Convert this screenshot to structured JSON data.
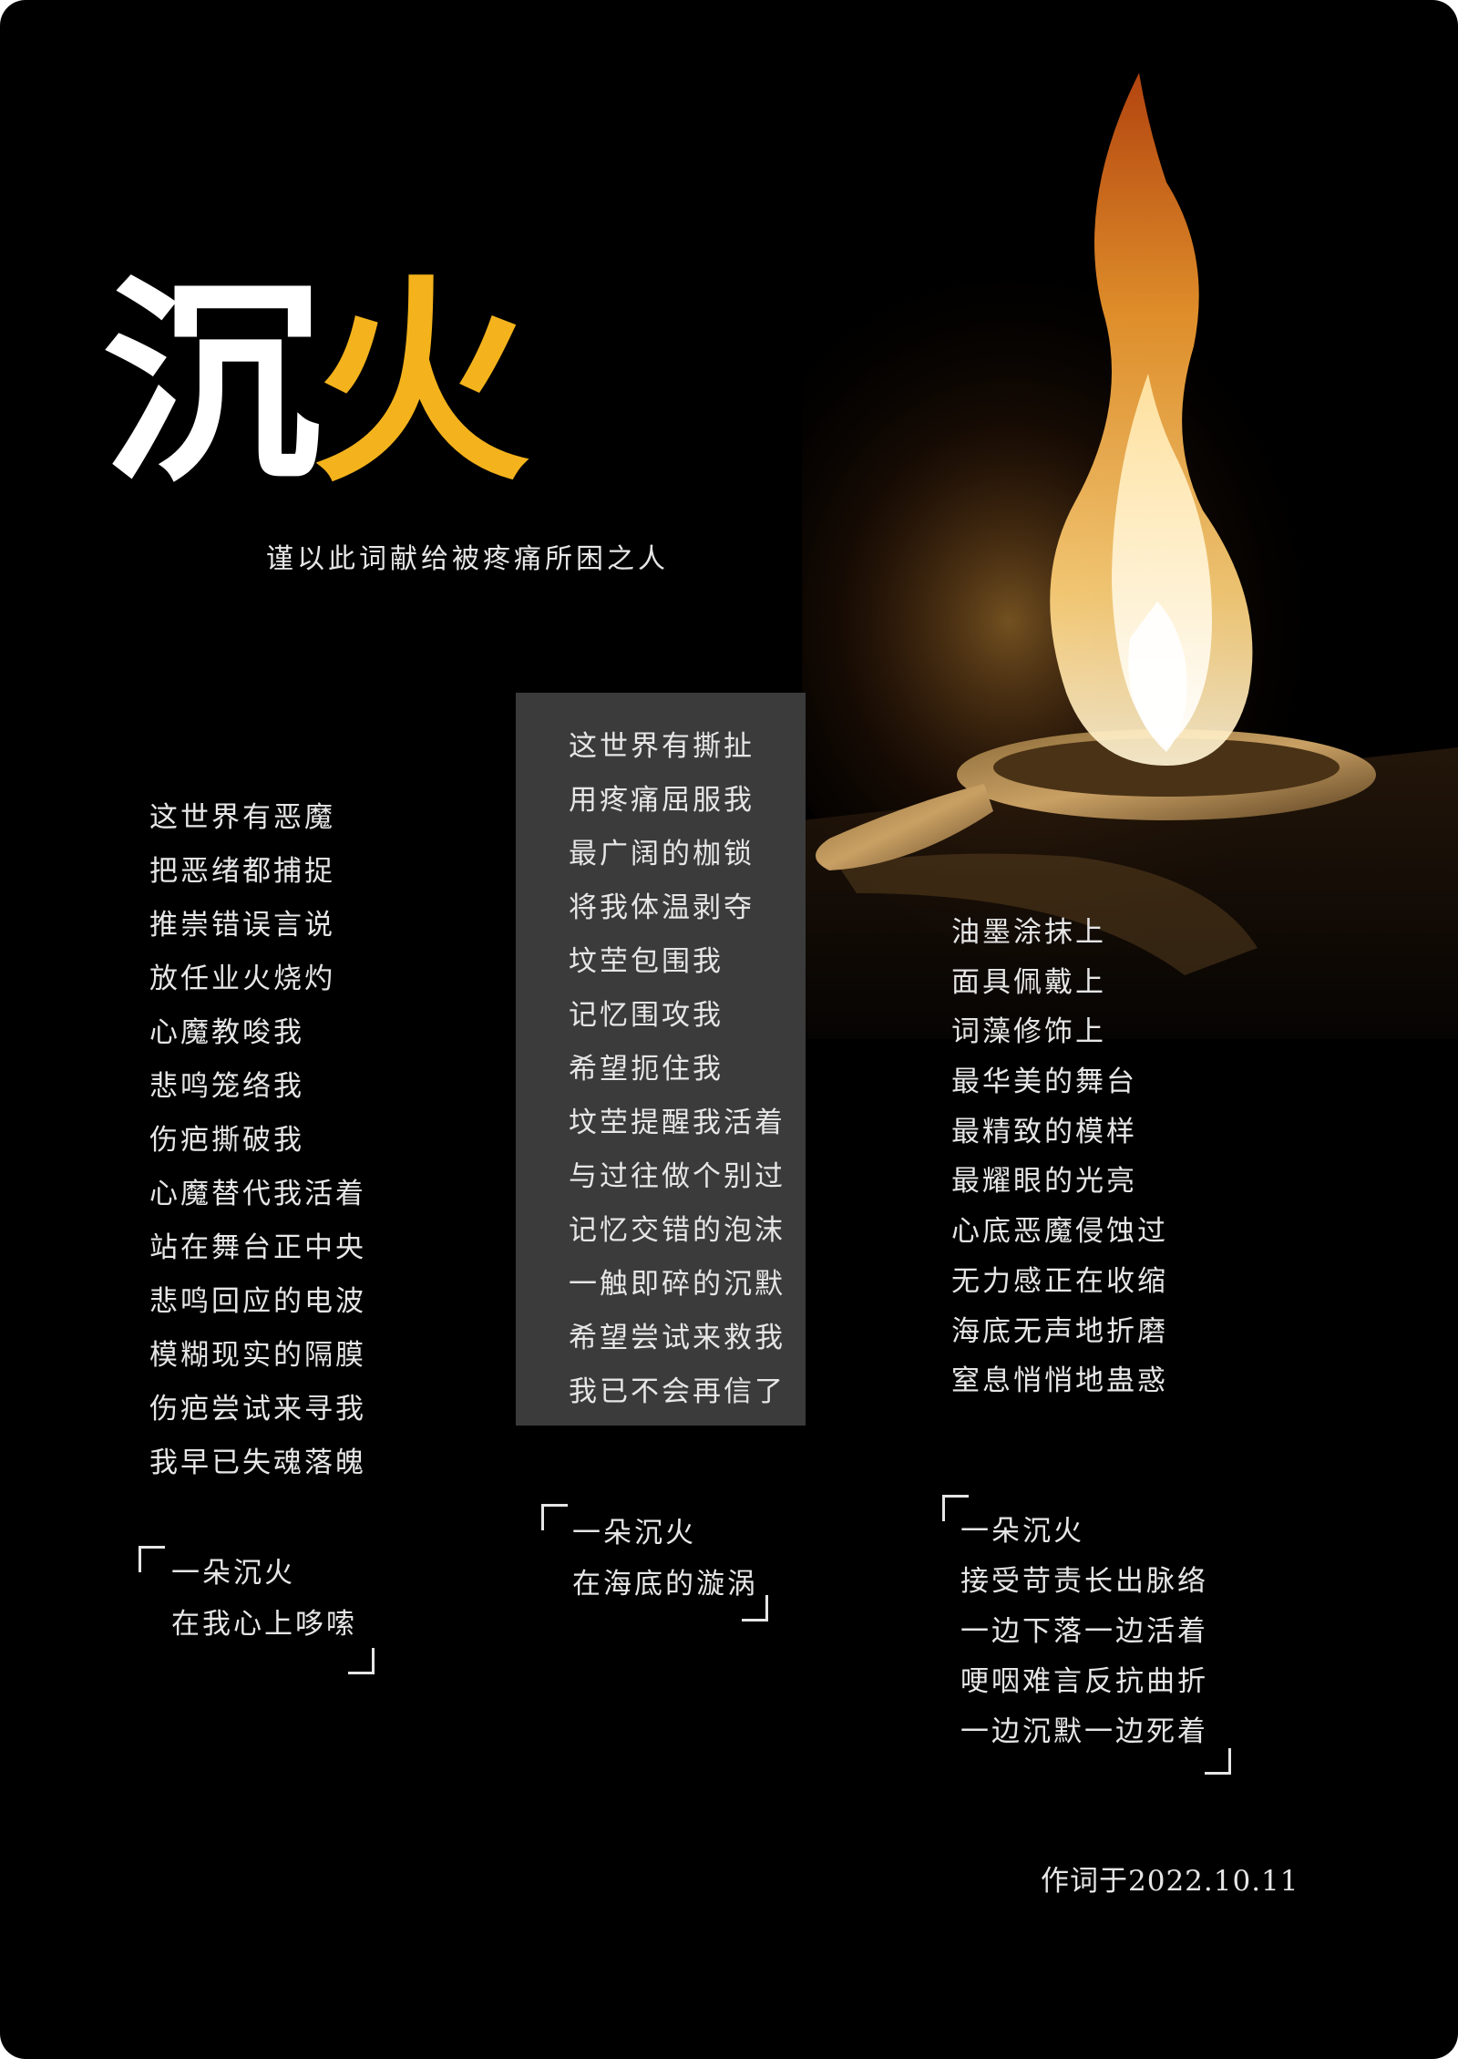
{
  "poster": {
    "title_part1": "沉",
    "title_part2": "火",
    "subtitle": "谨以此词献给被疼痛所困之人",
    "verse_left": [
      "这世界有恶魔",
      "把恶绪都捕捉",
      "推崇错误言说",
      "放任业火烧灼",
      "心魔教唆我",
      "悲鸣笼络我",
      "伤疤撕破我",
      "心魔替代我活着",
      "站在舞台正中央",
      "悲鸣回应的电波",
      "模糊现实的隔膜",
      "伤疤尝试来寻我",
      "我早已失魂落魄"
    ],
    "verse_middle": [
      "这世界有撕扯",
      "用疼痛屈服我",
      "最广阔的枷锁",
      "将我体温剥夺",
      "坟茔包围我",
      "记忆围攻我",
      "希望扼住我",
      "坟茔提醒我活着",
      "与过往做个别过",
      "记忆交错的泡沫",
      "一触即碎的沉默",
      "希望尝试来救我",
      "我已不会再信了"
    ],
    "verse_right": [
      "油墨涂抹上",
      "面具佩戴上",
      "词藻修饰上",
      "最华美的舞台",
      "最精致的模样",
      "最耀眼的光亮",
      "心底恶魔侵蚀过",
      "无力感正在收缩",
      "海底无声地折磨",
      "窒息悄悄地蛊惑"
    ],
    "chorus_left": [
      "一朵沉火",
      "在我心上哆嗦"
    ],
    "chorus_middle": [
      "一朵沉火",
      "在海底的漩涡"
    ],
    "chorus_right": [
      "一朵沉火",
      "接受苛责长出脉络",
      "一边下落一边活着",
      "哽咽难言反抗曲折",
      "一边沉默一边死着"
    ],
    "footer": "作词于2022.10.11",
    "colors": {
      "background": "#000000",
      "title_white": "#ffffff",
      "title_gold": "#f4b31c",
      "panel_gray": "#3b3b3b",
      "text": "#e6e6e6"
    },
    "image": "flame-on-brass-plate"
  }
}
